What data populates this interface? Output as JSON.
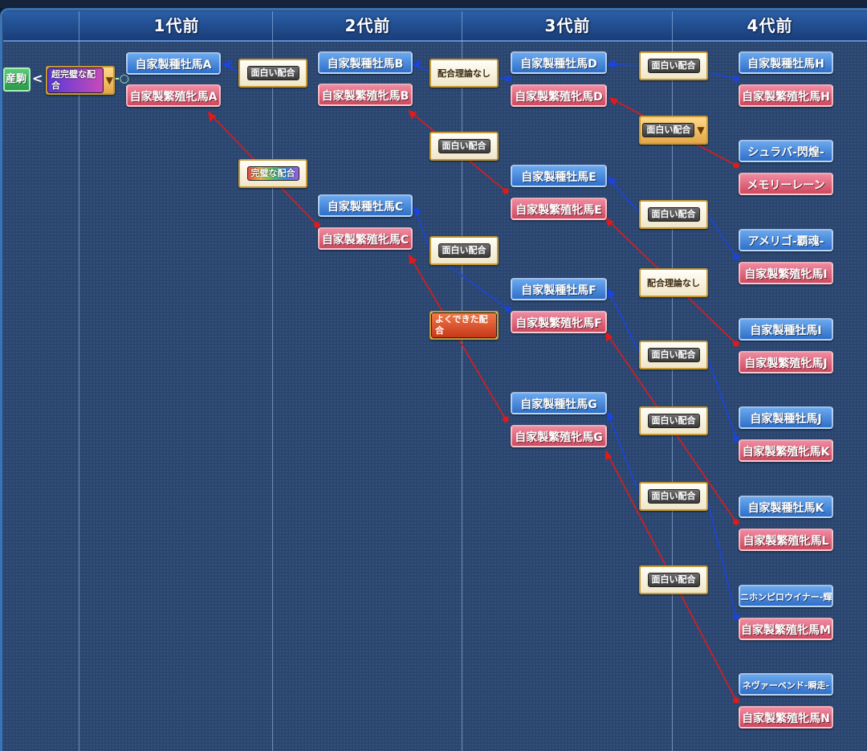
{
  "columns": [
    "1代前",
    "2代前",
    "3代前",
    "4代前"
  ],
  "self": {
    "label": "産駒"
  },
  "gen1": {
    "combo": "超完璧な配合",
    "sire": "自家製種牡馬A",
    "dam": "自家製繁殖牝馬A"
  },
  "gen2": {
    "combo_top": "面白い配合",
    "combo_dam": "完璧な配合",
    "sireB": "自家製種牡馬B",
    "damB": "自家製繁殖牝馬B",
    "sireC": "自家製種牡馬C",
    "damC": "自家製繁殖牝馬C"
  },
  "gen3": {
    "comboB_sire": "配合理論なし",
    "comboB_dam": "面白い配合",
    "comboC_sire": "面白い配合",
    "comboC_dam": "よくできた配合",
    "sireD": "自家製種牡馬D",
    "damD": "自家製繁殖牝馬D",
    "sireE": "自家製種牡馬E",
    "damE": "自家製繁殖牝馬E",
    "sireF": "自家製種牡馬F",
    "damF": "自家製繁殖牝馬F",
    "sireG": "自家製種牡馬G",
    "damG": "自家製繁殖牝馬G"
  },
  "gen4": {
    "combo1": "面白い配合",
    "combo2": "面白い配合",
    "combo3": "面白い配合",
    "combo4": "配合理論なし",
    "combo5": "面白い配合",
    "combo6": "面白い配合",
    "combo7": "面白い配合",
    "combo8": "面白い配合",
    "h1": "自家製種牡馬H",
    "h2": "自家製繁殖牝馬H",
    "h3": "シュラバ-閃煌-",
    "h4": "メモリーレーン",
    "h5": "アメリゴ-覇魂-",
    "h6": "自家製繁殖牝馬I",
    "h7": "自家製種牡馬I",
    "h8": "自家製繁殖牝馬J",
    "h9": "自家製種牡馬J",
    "h10": "自家製繁殖牝馬K",
    "h11": "自家製種牡馬K",
    "h12": "自家製繁殖牝馬L",
    "h13": "ニホンピロウイナー-輝闘-",
    "h14": "自家製繁殖牝馬M",
    "h15": "ネヴァーベンド-瞬走-",
    "h16": "自家製繁殖牝馬N"
  },
  "colors": {
    "sire_line": "#1a44e0",
    "dam_line": "#e01a1a",
    "sire_box": "#3f7fd6",
    "dam_box": "#dc5a70"
  }
}
